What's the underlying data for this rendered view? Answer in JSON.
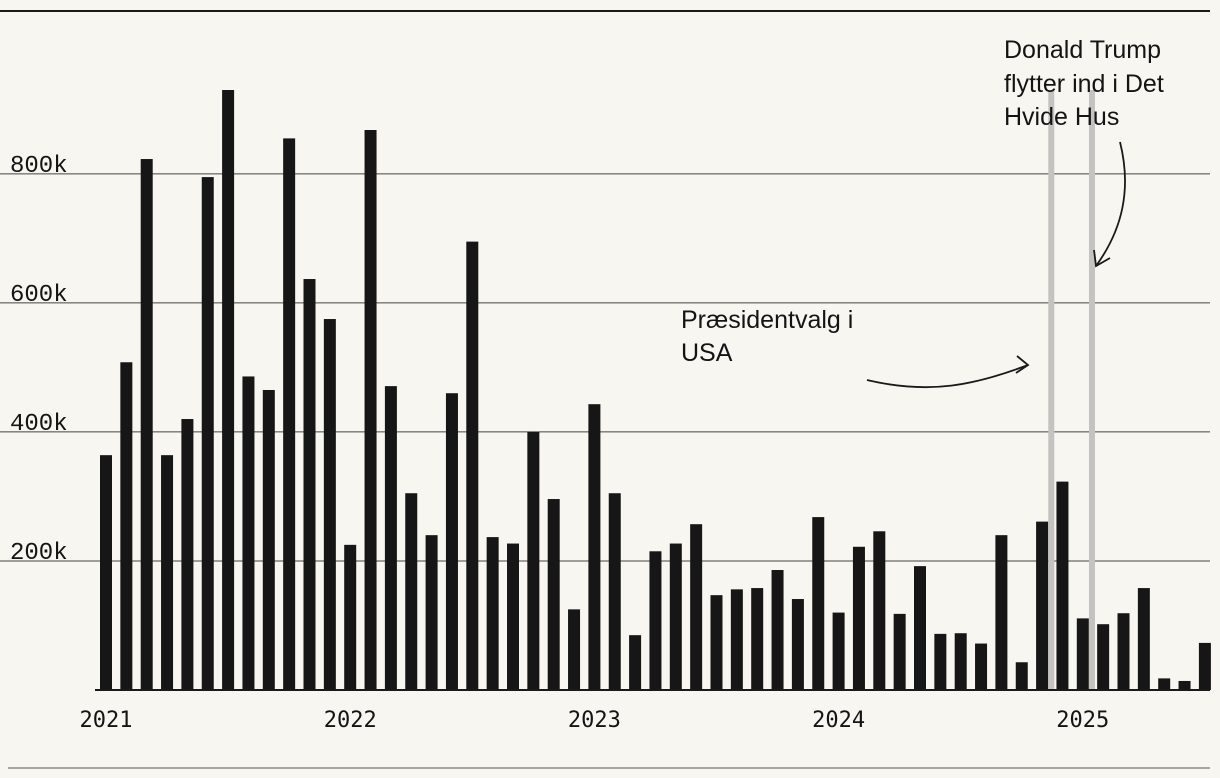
{
  "chart_data": {
    "type": "bar",
    "title": "",
    "xlabel": "",
    "ylabel": "",
    "ylim": [
      0,
      930000
    ],
    "yticks": [
      {
        "value": 200000,
        "label": "200k"
      },
      {
        "value": 400000,
        "label": "400k"
      },
      {
        "value": 600000,
        "label": "600k"
      },
      {
        "value": 800000,
        "label": "800k"
      }
    ],
    "xticks": [
      {
        "index": 0,
        "label": "2021"
      },
      {
        "index": 12,
        "label": "2022"
      },
      {
        "index": 24,
        "label": "2023"
      },
      {
        "index": 36,
        "label": "2024"
      },
      {
        "index": 48,
        "label": "2025"
      }
    ],
    "categories": [
      "2021-01",
      "2021-02",
      "2021-03",
      "2021-04",
      "2021-05",
      "2021-06",
      "2021-07",
      "2021-08",
      "2021-09",
      "2021-10",
      "2021-11",
      "2021-12",
      "2022-01",
      "2022-02",
      "2022-03",
      "2022-04",
      "2022-05",
      "2022-06",
      "2022-07",
      "2022-08",
      "2022-09",
      "2022-10",
      "2022-11",
      "2022-12",
      "2023-01",
      "2023-02",
      "2023-03",
      "2023-04",
      "2023-05",
      "2023-06",
      "2023-07",
      "2023-08",
      "2023-09",
      "2023-10",
      "2023-11",
      "2023-12",
      "2024-01",
      "2024-02",
      "2024-03",
      "2024-04",
      "2024-05",
      "2024-06",
      "2024-07",
      "2024-08",
      "2024-09",
      "2024-10",
      "2024-11",
      "2024-12",
      "2025-01",
      "2025-02",
      "2025-03",
      "2025-04",
      "2025-05",
      "2025-06",
      "2025-07"
    ],
    "values": [
      364000,
      508000,
      823000,
      364000,
      420000,
      795000,
      930000,
      486000,
      465000,
      855000,
      637000,
      575000,
      225000,
      868000,
      471000,
      305000,
      240000,
      460000,
      695000,
      237000,
      227000,
      400000,
      296000,
      125000,
      443000,
      305000,
      85000,
      215000,
      227000,
      257000,
      147000,
      156000,
      158000,
      186000,
      141000,
      268000,
      120000,
      222000,
      246000,
      118000,
      192000,
      87000,
      88000,
      72000,
      240000,
      43000,
      261000,
      323000,
      111000,
      102000,
      119000,
      158000,
      18000,
      14000,
      73000
    ],
    "events": [
      {
        "index": 46,
        "label": "Præsidentvalg i USA"
      },
      {
        "index": 48,
        "label": "Donald Trump flytter ind i Det Hvide Hus"
      }
    ],
    "annotations": [
      {
        "lines": [
          "Præsidentvalg i",
          "USA"
        ]
      },
      {
        "lines": [
          "Donald Trump",
          "flytter ind i Det",
          "Hvide Hus"
        ]
      }
    ]
  }
}
